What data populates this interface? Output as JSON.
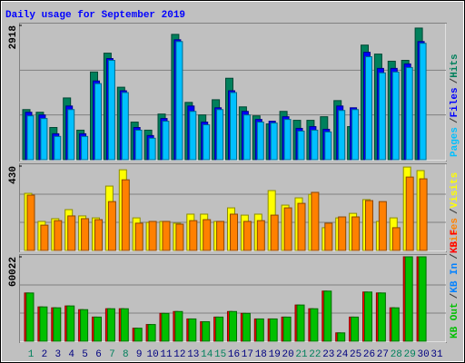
{
  "chart_data": [
    {
      "type": "bar",
      "title": "Daily usage for September 2019",
      "ylim": [
        0,
        2918
      ],
      "yticks": [
        2918
      ],
      "legend_separator": "/",
      "series": [
        {
          "name": "Hits",
          "color": "#00805c",
          "values": [
            1089,
            1031,
            700,
            1342,
            642,
            1906,
            2315,
            1575,
            817,
            642,
            992,
            2723,
            1245,
            973,
            1303,
            1770,
            1148,
            953,
            778,
            1050,
            856,
            856,
            934,
            1284,
            720,
            2490,
            2295,
            2140,
            2159,
            2860,
            0
          ]
        },
        {
          "name": "Files",
          "color": "#0000ff",
          "values": [
            1031,
            973,
            564,
            1167,
            564,
            1711,
            2198,
            1498,
            700,
            525,
            895,
            2606,
            1167,
            817,
            1128,
            1498,
            1050,
            875,
            836,
            934,
            681,
            720,
            661,
            1167,
            1128,
            2334,
            1984,
            1984,
            2081,
            2567,
            0
          ]
        },
        {
          "name": "Pages",
          "color": "#00c0ff",
          "values": [
            953,
            895,
            506,
            1089,
            506,
            1653,
            2159,
            1459,
            642,
            467,
            836,
            2567,
            1050,
            759,
            1089,
            1459,
            973,
            817,
            797,
            875,
            622,
            642,
            603,
            1070,
            1089,
            2237,
            1887,
            1906,
            2003,
            2529,
            0
          ]
        }
      ]
    },
    {
      "type": "bar",
      "ylim": [
        0,
        430
      ],
      "yticks": [
        430
      ],
      "legend_separator": "/",
      "series": [
        {
          "name": "Visits",
          "color": "#ffff00",
          "values": [
            291,
            148,
            162,
            208,
            176,
            166,
            328,
            411,
            166,
            143,
            148,
            139,
            185,
            185,
            148,
            217,
            180,
            185,
            305,
            231,
            268,
            286,
            116,
            166,
            189,
            259,
            148,
            166,
            425,
            407,
            0
          ]
        },
        {
          "name": "Sites",
          "color": "#ff8000",
          "values": [
            282,
            129,
            152,
            176,
            162,
            157,
            249,
            360,
            139,
            148,
            148,
            134,
            152,
            157,
            148,
            185,
            148,
            152,
            180,
            217,
            240,
            296,
            139,
            171,
            171,
            254,
            249,
            116,
            374,
            365,
            0
          ]
        }
      ]
    },
    {
      "type": "bar",
      "ylim": [
        0,
        60022
      ],
      "yticks": [
        60022
      ],
      "legend_separator": "/",
      "categories": [
        "1",
        "2",
        "3",
        "4",
        "5",
        "6",
        "7",
        "8",
        "9",
        "10",
        "11",
        "12",
        "13",
        "14",
        "15",
        "16",
        "17",
        "18",
        "19",
        "20",
        "21",
        "22",
        "23",
        "24",
        "25",
        "26",
        "27",
        "28",
        "29",
        "30",
        "31"
      ],
      "category_colors": [
        "#00805c",
        "#000080",
        "#000080",
        "#000080",
        "#000080",
        "#000080",
        "#00805c",
        "#00805c",
        "#000080",
        "#000080",
        "#000080",
        "#000080",
        "#000080",
        "#00805c",
        "#00805c",
        "#000080",
        "#000080",
        "#000080",
        "#000080",
        "#000080",
        "#00805c",
        "#00805c",
        "#000080",
        "#000080",
        "#000080",
        "#000080",
        "#000080",
        "#00805c",
        "#00805c",
        "#000080",
        "#000080"
      ],
      "series": [
        {
          "name": "KB F",
          "color": "#ff0000",
          "values": [
            34300,
            24400,
            23760,
            25080,
            22440,
            17160,
            23100,
            23100,
            9240,
            11880,
            19800,
            21120,
            15840,
            13860,
            17160,
            21120,
            19800,
            15840,
            15840,
            17160,
            25740,
            23100,
            35640,
            5940,
            17160,
            34980,
            34320,
            23760,
            60022,
            60022,
            0
          ]
        },
        {
          "name": "KB In",
          "color": "#0080ff",
          "values": [
            0,
            0,
            0,
            0,
            0,
            0,
            0,
            0,
            0,
            0,
            0,
            0,
            0,
            0,
            0,
            0,
            0,
            0,
            0,
            0,
            0,
            0,
            0,
            0,
            0,
            0,
            0,
            0,
            0,
            0,
            0
          ]
        },
        {
          "name": "KB Out",
          "color": "#00c000",
          "values": [
            34300,
            24400,
            23760,
            25080,
            22440,
            17160,
            23100,
            23100,
            9240,
            11880,
            19800,
            21120,
            15840,
            13860,
            17160,
            21120,
            19800,
            15840,
            15840,
            17160,
            25740,
            23100,
            35640,
            5940,
            17160,
            34980,
            34320,
            23760,
            60022,
            60022,
            0
          ]
        }
      ]
    }
  ]
}
